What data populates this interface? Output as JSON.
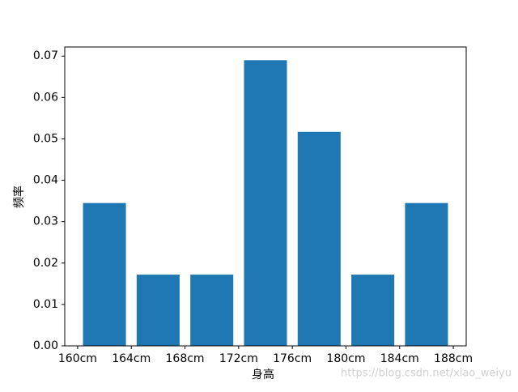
{
  "chart_data": {
    "type": "bar",
    "x_label": "身高",
    "y_label": "频率",
    "x": [
      162,
      166,
      170,
      174,
      178,
      182,
      186
    ],
    "bar_width": 3.2,
    "values": [
      0.0345,
      0.0172,
      0.0172,
      0.069,
      0.0517,
      0.0172,
      0.0345
    ],
    "color": "#1f77b4",
    "xlim": [
      159.04,
      188.96
    ],
    "xticks": [
      {
        "value": 160,
        "label": "160cm"
      },
      {
        "value": 164,
        "label": "164cm"
      },
      {
        "value": 168,
        "label": "168cm"
      },
      {
        "value": 172,
        "label": "172cm"
      },
      {
        "value": 176,
        "label": "176cm"
      },
      {
        "value": 180,
        "label": "180cm"
      },
      {
        "value": 184,
        "label": "184cm"
      },
      {
        "value": 188,
        "label": "188cm"
      }
    ],
    "ylim": [
      0,
      0.0722
    ],
    "yticks": [
      {
        "value": 0,
        "label": "0.00"
      },
      {
        "value": 0.01,
        "label": "0.01"
      },
      {
        "value": 0.02,
        "label": "0.02"
      },
      {
        "value": 0.03,
        "label": "0.03"
      },
      {
        "value": 0.04,
        "label": "0.04"
      },
      {
        "value": 0.05,
        "label": "0.05"
      },
      {
        "value": 0.06,
        "label": "0.06"
      },
      {
        "value": 0.07,
        "label": "0.07"
      }
    ],
    "grid": false,
    "watermark": "https://blog.csdn.net/xiao_weiyu"
  }
}
